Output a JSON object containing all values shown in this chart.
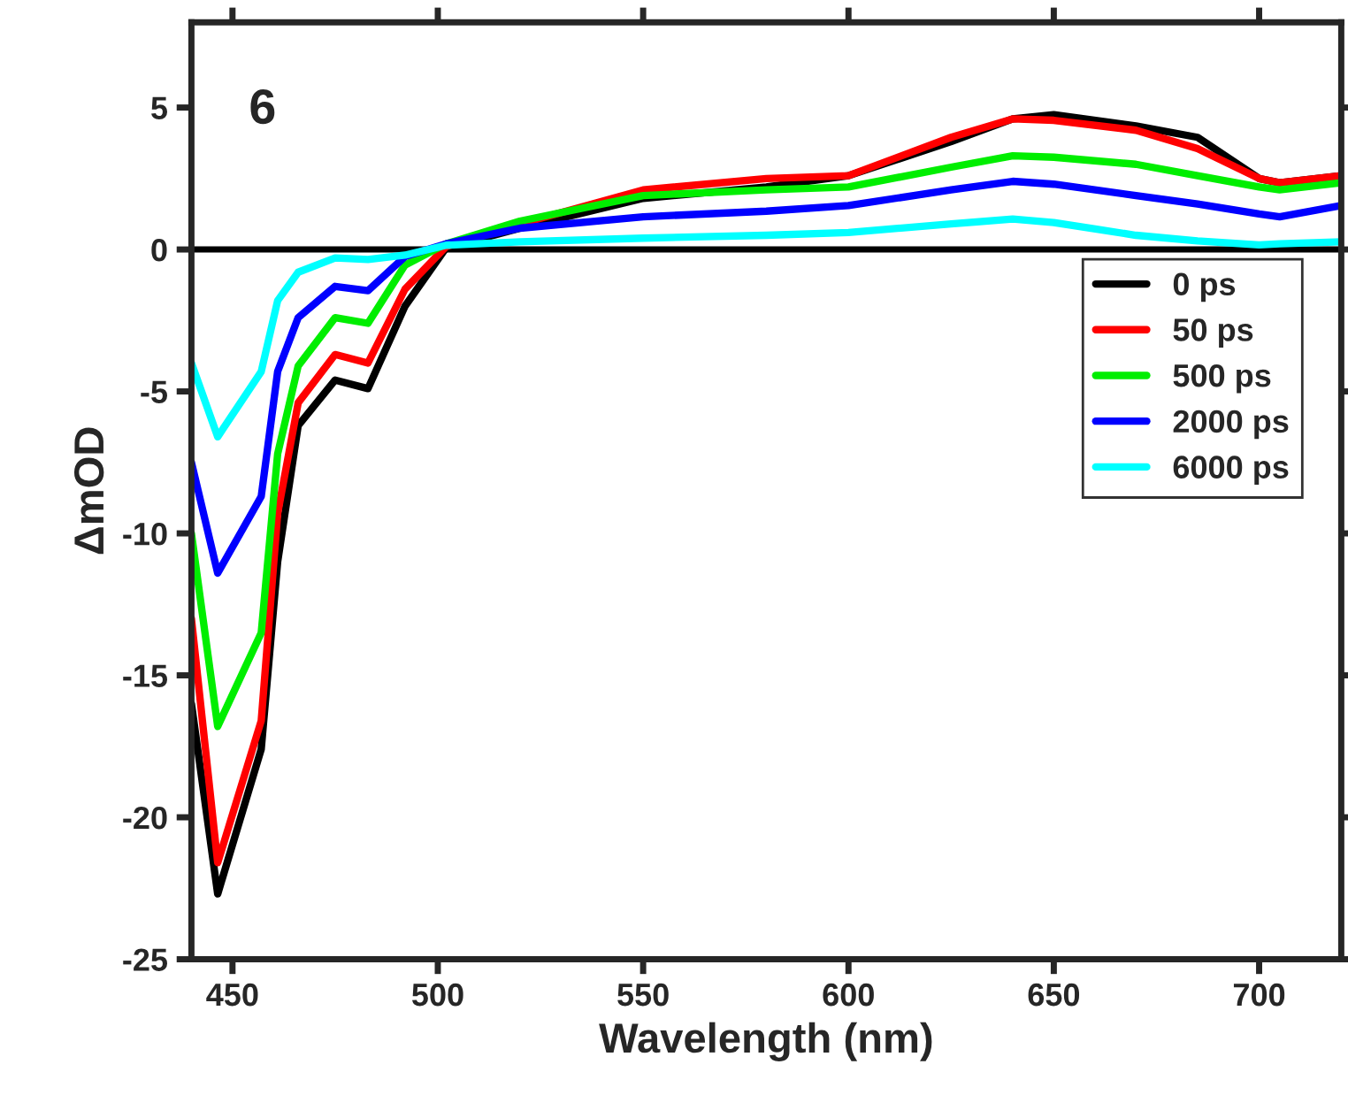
{
  "chart_data": {
    "type": "line",
    "xlabel": "Wavelength (nm)",
    "ylabel": "ΔmOD",
    "annotations": [
      "6"
    ],
    "xlim": [
      440,
      720
    ],
    "xticks": [
      450,
      500,
      550,
      600,
      650,
      700
    ],
    "ylim": [
      -25,
      8
    ],
    "yticks": [
      -25,
      -20,
      -15,
      -10,
      -5,
      0,
      5
    ],
    "grid": false,
    "legend": "right",
    "marker": "none",
    "line_style": "solid",
    "ref_lines": [
      {
        "axis": "y",
        "value": 0,
        "color": "#000000"
      }
    ],
    "x": [
      440,
      446.4,
      457,
      461,
      466,
      475,
      483,
      492,
      502,
      520,
      550,
      580,
      600,
      625,
      640,
      650,
      670,
      685,
      700,
      705,
      720
    ],
    "series": [
      {
        "name": "0 ps",
        "color": "#000000",
        "values": [
          -16,
          -22.7,
          -17.6,
          -11,
          -6.2,
          -4.6,
          -4.9,
          -2.0,
          0.05,
          0.75,
          1.8,
          2.2,
          2.6,
          3.8,
          4.6,
          4.75,
          4.35,
          3.95,
          2.5,
          2.35,
          2.6
        ]
      },
      {
        "name": "50 ps",
        "color": "#ff0000",
        "values": [
          -13,
          -21.6,
          -16.6,
          -9.3,
          -5.4,
          -3.7,
          -4.0,
          -1.4,
          0.1,
          0.9,
          2.1,
          2.5,
          2.6,
          3.95,
          4.6,
          4.55,
          4.2,
          3.55,
          2.5,
          2.35,
          2.6
        ]
      },
      {
        "name": "500 ps",
        "color": "#00ee00",
        "values": [
          -10,
          -16.8,
          -13.5,
          -7.2,
          -4.1,
          -2.4,
          -2.6,
          -0.55,
          0.2,
          1.0,
          1.9,
          2.1,
          2.2,
          2.9,
          3.3,
          3.25,
          3.0,
          2.6,
          2.2,
          2.1,
          2.35
        ]
      },
      {
        "name": "2000 ps",
        "color": "#0000ff",
        "values": [
          -7.5,
          -11.4,
          -8.7,
          -4.3,
          -2.4,
          -1.3,
          -1.45,
          -0.25,
          0.2,
          0.75,
          1.15,
          1.35,
          1.55,
          2.1,
          2.4,
          2.3,
          1.9,
          1.6,
          1.25,
          1.15,
          1.55
        ]
      },
      {
        "name": "6000 ps",
        "color": "#00ffff",
        "values": [
          -4,
          -6.6,
          -4.3,
          -1.8,
          -0.8,
          -0.3,
          -0.35,
          -0.2,
          0.15,
          0.27,
          0.4,
          0.5,
          0.6,
          0.9,
          1.07,
          0.95,
          0.5,
          0.3,
          0.16,
          0.2,
          0.27
        ]
      }
    ]
  }
}
